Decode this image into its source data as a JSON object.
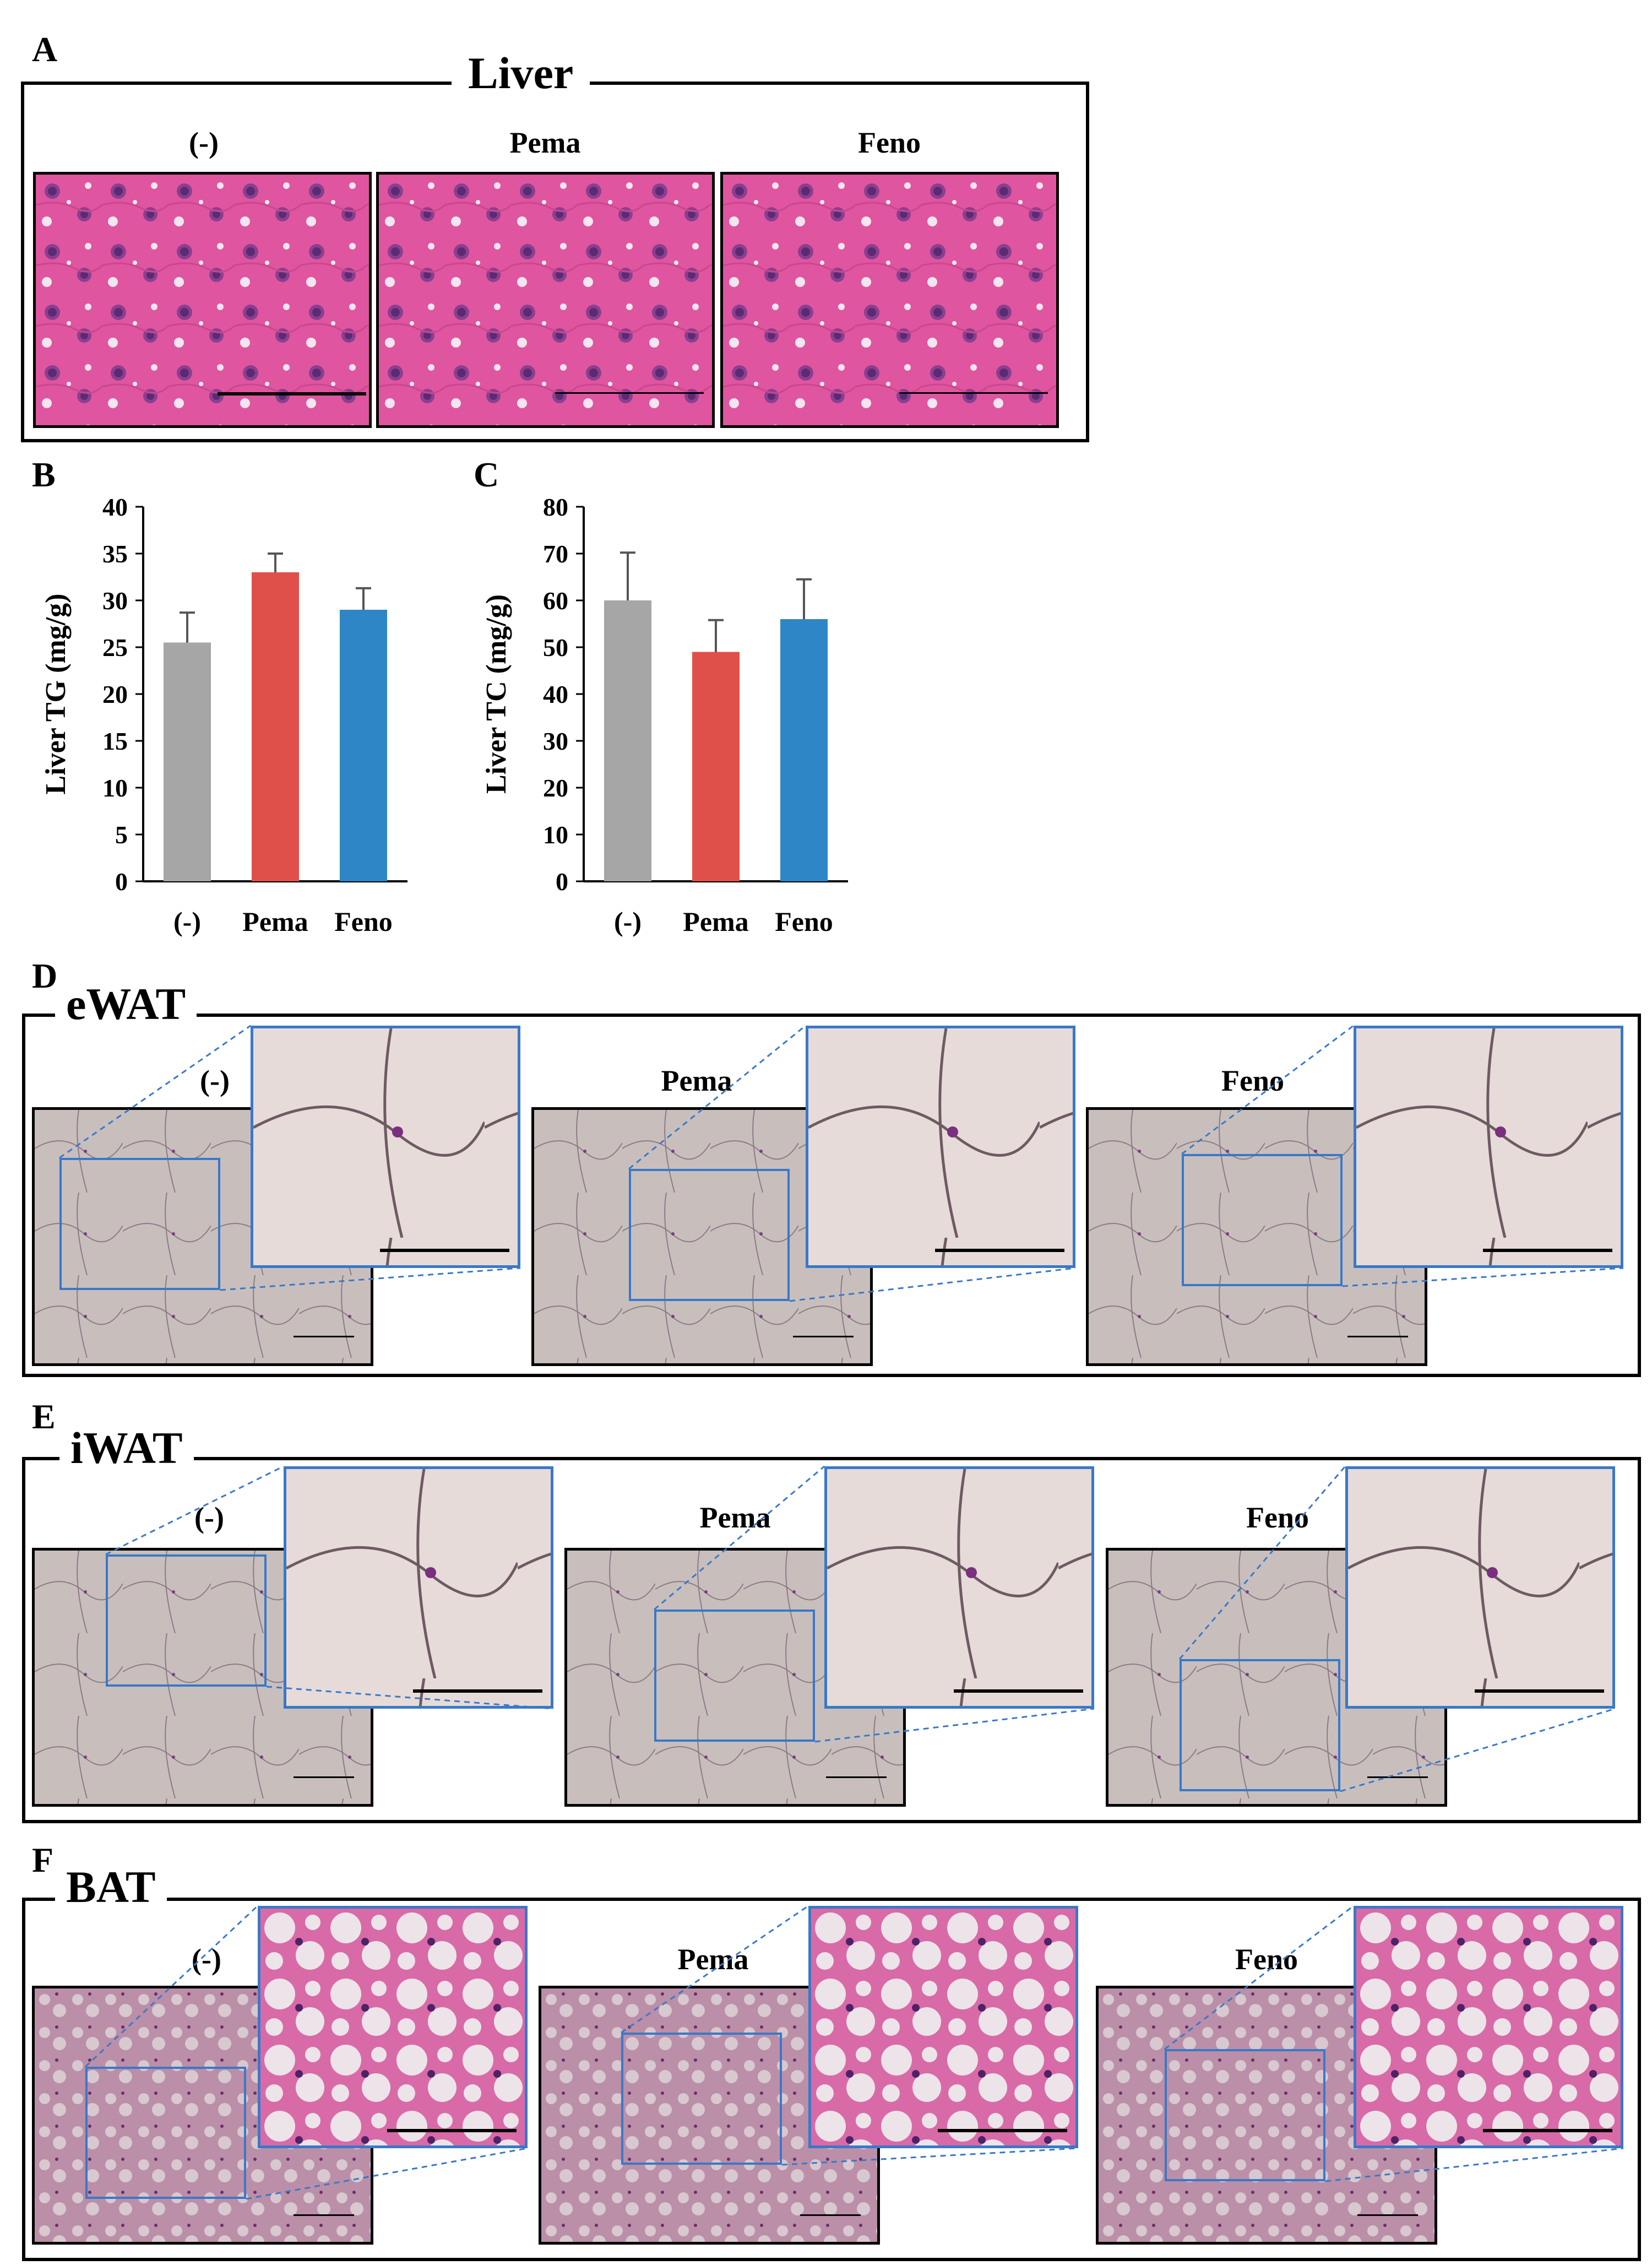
{
  "panel_labels": {
    "A": "A",
    "B": "B",
    "C": "C",
    "D": "D",
    "E": "E",
    "F": "F"
  },
  "sections": {
    "liver": "Liver",
    "ewat": "eWAT",
    "iwat": "iWAT",
    "bat": "BAT"
  },
  "conditions": [
    "(-)",
    "Pema",
    "Feno"
  ],
  "colors": {
    "control": "#a6a6a6",
    "pema": "#e0504a",
    "feno": "#2e86c6",
    "inset_border": "#3a78c8",
    "he_pink": "#d9449b",
    "adipose_bg": "#c9bfbd"
  },
  "chart_data": [
    {
      "type": "bar",
      "panel": "B",
      "categories": [
        "(-)",
        "Pema",
        "Feno"
      ],
      "values": [
        25.5,
        33.0,
        29.0
      ],
      "errors": [
        3.2,
        2.0,
        2.3
      ],
      "ylabel": "Liver TG (mg/g)",
      "ylim": [
        0,
        40
      ],
      "yticks": [
        0,
        5,
        10,
        15,
        20,
        25,
        30,
        35,
        40
      ],
      "colors": [
        "#a6a6a6",
        "#e0504a",
        "#2e86c6"
      ]
    },
    {
      "type": "bar",
      "panel": "C",
      "categories": [
        "(-)",
        "Pema",
        "Feno"
      ],
      "values": [
        60.0,
        49.0,
        56.0
      ],
      "errors": [
        10.2,
        6.8,
        8.5
      ],
      "ylabel": "Liver TC (mg/g)",
      "ylim": [
        0,
        80
      ],
      "yticks": [
        0,
        10,
        20,
        30,
        40,
        50,
        60,
        70,
        80
      ],
      "colors": [
        "#a6a6a6",
        "#e0504a",
        "#2e86c6"
      ]
    }
  ]
}
